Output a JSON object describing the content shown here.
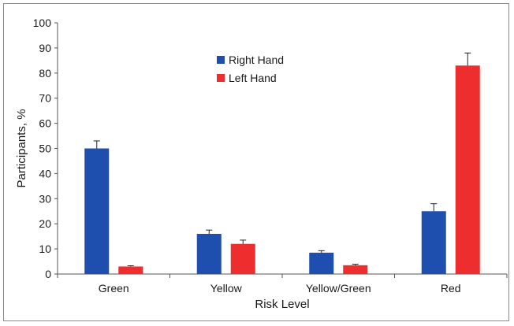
{
  "chart_data": {
    "type": "bar",
    "categories": [
      "Green",
      "Yellow",
      "Yellow/Green",
      "Red"
    ],
    "series": [
      {
        "name": "Right Hand",
        "values": [
          50,
          16,
          8.5,
          25
        ],
        "errors": [
          3,
          1.5,
          0.8,
          3
        ],
        "color": "#1f4fae"
      },
      {
        "name": "Left Hand",
        "values": [
          3,
          12,
          3.5,
          83
        ],
        "errors": [
          0.3,
          1.5,
          0.4,
          5
        ],
        "color": "#ee2e2e"
      }
    ],
    "xlabel": "Risk Level",
    "ylabel": "Participants, %",
    "ylim": [
      0,
      100
    ],
    "yticks": [
      "0",
      "10",
      "20",
      "30",
      "40",
      "50",
      "60",
      "70",
      "80",
      "90",
      "100"
    ],
    "grid": false,
    "legend_position": "top-center",
    "error_bars": true
  }
}
